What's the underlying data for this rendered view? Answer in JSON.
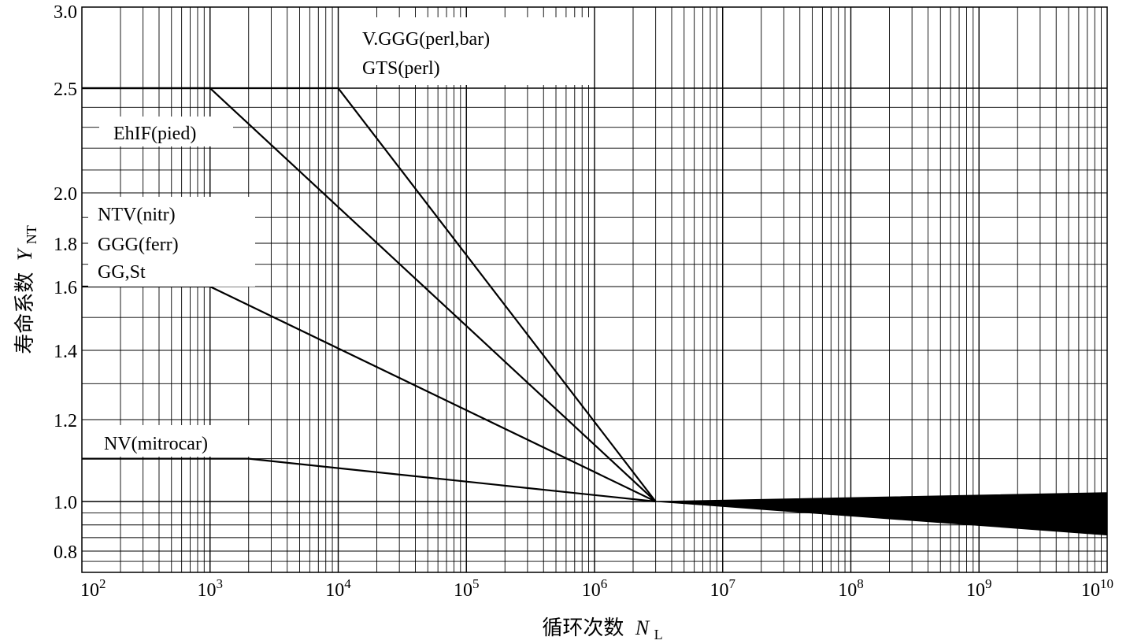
{
  "chart_data": {
    "type": "line",
    "title": "",
    "xlabel": "循环次数",
    "xlabel_symbol": "N",
    "xlabel_sub": "L",
    "ylabel": "寿命系数",
    "ylabel_symbol": "Y",
    "ylabel_sub": "NT",
    "x_scale": "log",
    "y_scale": "log",
    "xlim": [
      100,
      10000000000
    ],
    "ylim": [
      0.7,
      3.0
    ],
    "grid": true,
    "x_ticks": [
      {
        "base": "10",
        "exp": "2"
      },
      {
        "base": "10",
        "exp": "3"
      },
      {
        "base": "10",
        "exp": "4"
      },
      {
        "base": "10",
        "exp": "5"
      },
      {
        "base": "10",
        "exp": "6"
      },
      {
        "base": "10",
        "exp": "7"
      },
      {
        "base": "10",
        "exp": "8"
      },
      {
        "base": "10",
        "exp": "9"
      },
      {
        "base": "10",
        "exp": "10"
      }
    ],
    "y_ticks": [
      "0.8",
      "1.0",
      "1.2",
      "1.4",
      "1.6",
      "1.8",
      "2.0",
      "2.5",
      "3.0"
    ],
    "series": [
      {
        "name": "V.GGG(perl,bar)",
        "name2": "GTS(perl)",
        "x": [
          100,
          10000,
          3000000
        ],
        "y": [
          2.5,
          2.5,
          1.0
        ]
      },
      {
        "name": "EhIF(pied)",
        "x": [
          100,
          1000,
          3000000
        ],
        "y": [
          2.5,
          2.5,
          1.0
        ]
      },
      {
        "name": "NTV(nitr)",
        "name2": "GGG(ferr)",
        "name3": "GG,St",
        "x": [
          100,
          1000,
          3000000
        ],
        "y": [
          1.6,
          1.6,
          1.0
        ]
      },
      {
        "name": "NV(mitrocar)",
        "x": [
          100,
          2000,
          3000000
        ],
        "y": [
          1.1,
          1.1,
          1.0
        ]
      }
    ],
    "band": {
      "x": [
        3000000,
        10000000000
      ],
      "y_upper": [
        1.0,
        1.02
      ],
      "y_lower": [
        1.0,
        0.86
      ]
    }
  }
}
